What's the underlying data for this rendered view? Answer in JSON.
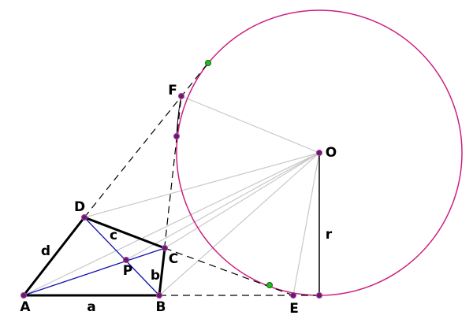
{
  "points": [
    {
      "label": "A"
    },
    {
      "label": "B"
    },
    {
      "label": "C"
    },
    {
      "label": "D"
    },
    {
      "label": "P"
    },
    {
      "label": "E"
    },
    {
      "label": "F"
    },
    {
      "label": "O"
    }
  ],
  "segments": [
    {
      "label": "a"
    },
    {
      "label": "b"
    },
    {
      "label": "c"
    },
    {
      "label": "d"
    },
    {
      "label": "r"
    }
  ]
}
